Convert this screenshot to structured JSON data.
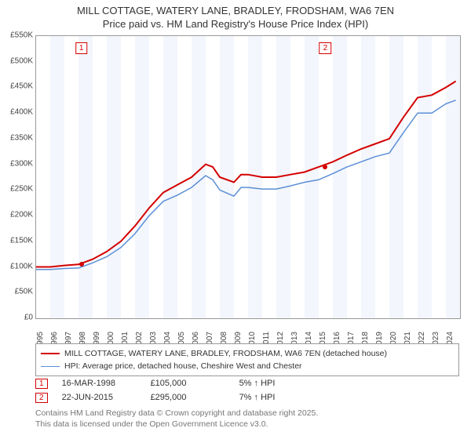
{
  "title_line1": "MILL COTTAGE, WATERY LANE, BRADLEY, FRODSHAM, WA6 7EN",
  "title_line2": "Price paid vs. HM Land Registry's House Price Index (HPI)",
  "chart": {
    "type": "line",
    "background_color": "#ffffff",
    "band_color": "#f3f6fc",
    "border_color": "#999999",
    "xlim": [
      1995,
      2025
    ],
    "ylim": [
      0,
      550000
    ],
    "ytick_step": 50000,
    "ytick_labels": [
      "£0",
      "£50K",
      "£100K",
      "£150K",
      "£200K",
      "£250K",
      "£300K",
      "£350K",
      "£400K",
      "£450K",
      "£500K",
      "£550K"
    ],
    "xtick_step": 1,
    "xtick_labels": [
      "1995",
      "1996",
      "1997",
      "1998",
      "1999",
      "2000",
      "2001",
      "2002",
      "2003",
      "2004",
      "2005",
      "2006",
      "2007",
      "2008",
      "2009",
      "2010",
      "2011",
      "2012",
      "2013",
      "2014",
      "2015",
      "2016",
      "2017",
      "2018",
      "2019",
      "2020",
      "2021",
      "2022",
      "2023",
      "2024"
    ],
    "series": [
      {
        "name": "price_paid",
        "label": "MILL COTTAGE, WATERY LANE, BRADLEY, FRODSHAM, WA6 7EN (detached house)",
        "color": "#d40000",
        "line_width": 2,
        "x": [
          1995,
          1996,
          1997,
          1998,
          1999,
          2000,
          2001,
          2002,
          2003,
          2004,
          2005,
          2006,
          2007,
          2007.5,
          2008,
          2009,
          2009.5,
          2010,
          2011,
          2012,
          2013,
          2014,
          2015,
          2016,
          2017,
          2018,
          2019,
          2020,
          2021,
          2022,
          2023,
          2024,
          2024.7
        ],
        "y": [
          100000,
          100000,
          103000,
          105000,
          115000,
          130000,
          150000,
          180000,
          215000,
          245000,
          260000,
          275000,
          300000,
          295000,
          275000,
          265000,
          280000,
          280000,
          275000,
          275000,
          280000,
          285000,
          295000,
          305000,
          318000,
          330000,
          340000,
          350000,
          392000,
          430000,
          435000,
          450000,
          462000
        ]
      },
      {
        "name": "hpi",
        "label": "HPI: Average price, detached house, Cheshire West and Chester",
        "color": "#5b8fd6",
        "line_width": 1.5,
        "x": [
          1995,
          1996,
          1997,
          1998,
          1999,
          2000,
          2001,
          2002,
          2003,
          2004,
          2005,
          2006,
          2007,
          2007.5,
          2008,
          2009,
          2009.5,
          2010,
          2011,
          2012,
          2013,
          2014,
          2015,
          2016,
          2017,
          2018,
          2019,
          2020,
          2021,
          2022,
          2023,
          2024,
          2024.7
        ],
        "y": [
          95000,
          95000,
          97000,
          98000,
          108000,
          120000,
          138000,
          165000,
          200000,
          228000,
          240000,
          255000,
          278000,
          270000,
          250000,
          238000,
          255000,
          255000,
          252000,
          252000,
          258000,
          265000,
          270000,
          282000,
          295000,
          305000,
          315000,
          322000,
          362000,
          400000,
          400000,
          418000,
          425000
        ]
      }
    ],
    "markers": [
      {
        "id": "1",
        "x": 1998.2,
        "y": 105000
      },
      {
        "id": "2",
        "x": 2015.47,
        "y": 295000
      }
    ]
  },
  "annotations": [
    {
      "id": "1",
      "date": "16-MAR-1998",
      "price": "£105,000",
      "delta": "5% ↑ HPI"
    },
    {
      "id": "2",
      "date": "22-JUN-2015",
      "price": "£295,000",
      "delta": "7% ↑ HPI"
    }
  ],
  "legend_fontsize": 10.5,
  "footer_line1": "Contains HM Land Registry data © Crown copyright and database right 2025.",
  "footer_line2": "This data is licensed under the Open Government Licence v3.0."
}
